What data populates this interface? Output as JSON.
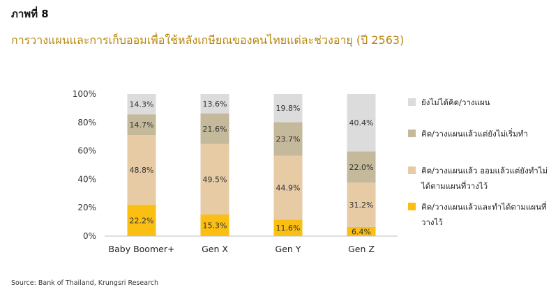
{
  "header": {
    "figure_label": "ภาพที่ 8",
    "title": "การวางแผนและการเก็บออมเพื่อใช้หลังเกษียณของคนไทยแต่ละช่วงอายุ (ปี 2563)"
  },
  "source": "Source: Bank of Thailand, Krungsri Research",
  "chart_data": {
    "type": "bar",
    "stacked": true,
    "categories": [
      "Baby Boomer+",
      "Gen X",
      "Gen Y",
      "Gen Z"
    ],
    "yticks": [
      "0%",
      "20%",
      "40%",
      "60%",
      "80%",
      "100%"
    ],
    "ylim": [
      0,
      100
    ],
    "series": [
      {
        "name": "คิด/วางแผนแล้วและทำได้ตามแผนที่วางไว้",
        "color": "#fbbf13",
        "values": [
          22.2,
          15.3,
          11.6,
          6.4
        ],
        "labels": [
          "22.2%",
          "15.3%",
          "11.6%",
          "6.4%"
        ]
      },
      {
        "name": "คิด/วางแผนแล้ว ออมแล้วแต่ยังทำไม่ได้ตามแผนที่วางไว้",
        "color": "#e6cba5",
        "values": [
          48.8,
          49.5,
          44.9,
          31.2
        ],
        "labels": [
          "48.8%",
          "49.5%",
          "44.9%",
          "31.2%"
        ]
      },
      {
        "name": "คิด/วางแผนแล้วแต่ยังไม่เริ่มทำ",
        "color": "#c4b99b",
        "values": [
          14.7,
          21.6,
          23.7,
          22.0
        ],
        "labels": [
          "14.7%",
          "21.6%",
          "23.7%",
          "22.0%"
        ]
      },
      {
        "name": "ยังไม่ได้คิด/วางแผน",
        "color": "#dcdcdc",
        "values": [
          14.3,
          13.6,
          19.8,
          40.4
        ],
        "labels": [
          "14.3%",
          "13.6%",
          "19.8%",
          "40.4%"
        ]
      }
    ],
    "legend": [
      {
        "label": "ยังไม่ได้คิด/วางแผน",
        "color": "#dcdcdc"
      },
      {
        "label": "คิด/วางแผนแล้วแต่ยังไม่เริ่มทำ",
        "color": "#c4b99b"
      },
      {
        "label": "คิด/วางแผนแล้ว ออมแล้วแต่ยังทำไม่ได้ตามแผนที่วางไว้",
        "color": "#e6cba5"
      },
      {
        "label": "คิด/วางแผนแล้วและทำได้ตามแผนที่วางไว้",
        "color": "#fbbf13"
      }
    ],
    "legend_position": "right",
    "grid": false
  }
}
